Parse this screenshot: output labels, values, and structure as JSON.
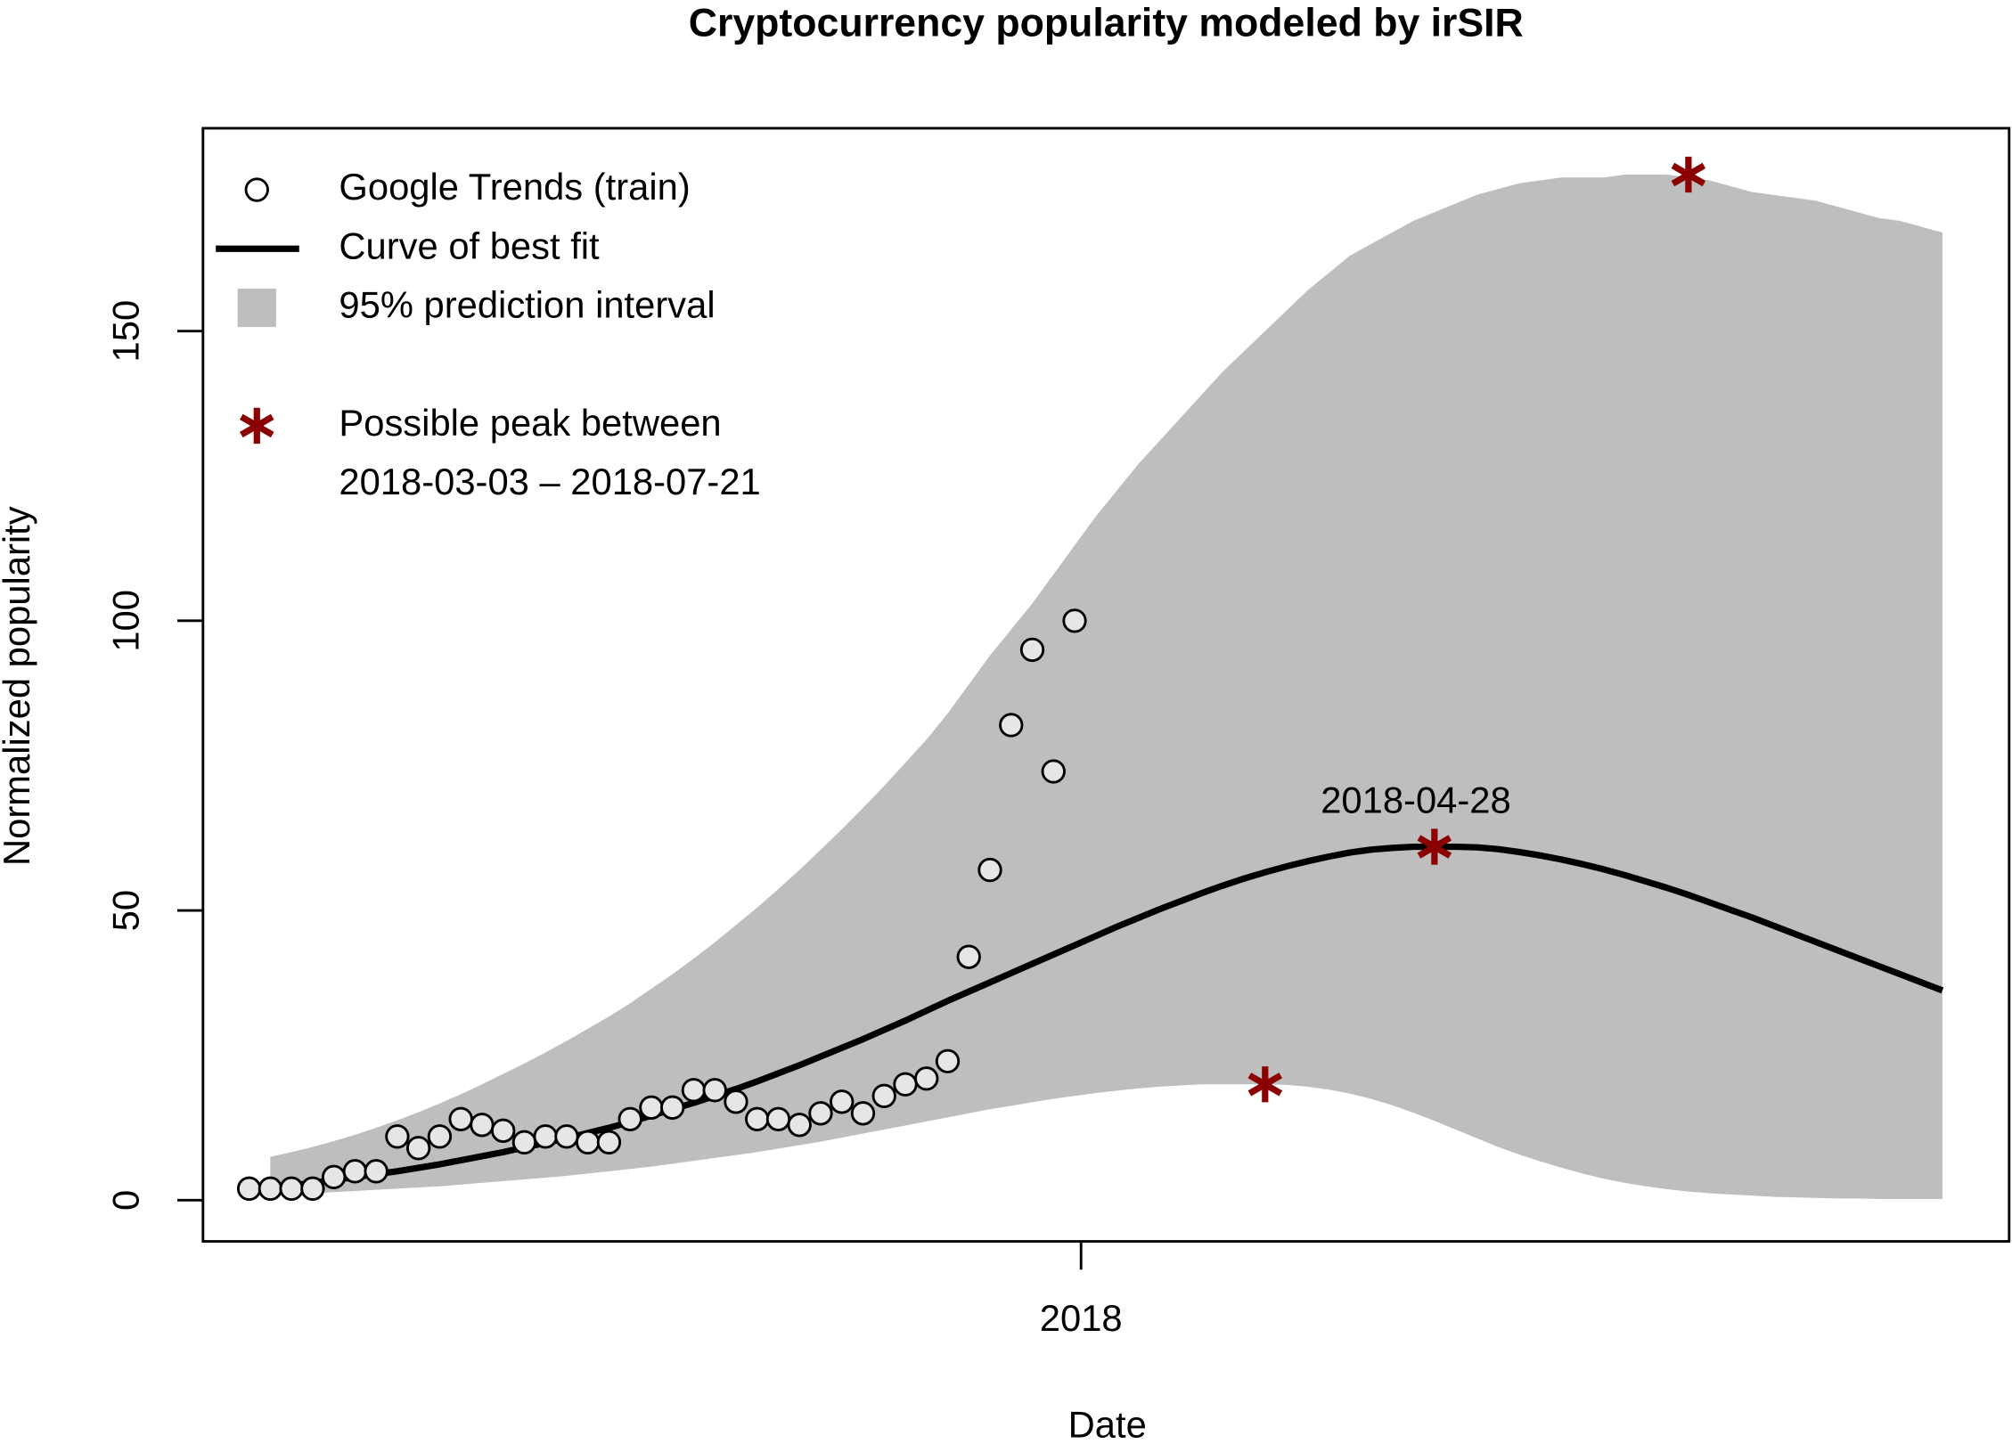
{
  "chart_data": {
    "type": "line",
    "title": "Cryptocurrency popularity modeled by irSIR",
    "x_label": "Date",
    "y_label": "Normalized popularity",
    "ylim": [
      -7.1,
      185
    ],
    "yticks": [
      0,
      50,
      100,
      150
    ],
    "categories": [
      null,
      null,
      null,
      null,
      null,
      null,
      null,
      null,
      null,
      null,
      null,
      null,
      null,
      null,
      null,
      null,
      null,
      null,
      null,
      null,
      null,
      null,
      null,
      null,
      null,
      null,
      null,
      null,
      null,
      null,
      null,
      null,
      null,
      null,
      null,
      null,
      null,
      null,
      null,
      "2018",
      null,
      null,
      null,
      null,
      null,
      null,
      null,
      null,
      null,
      null,
      null,
      null,
      null,
      null,
      null,
      null,
      null,
      null,
      null,
      null,
      null,
      null,
      null,
      null,
      null,
      null,
      null,
      null,
      null,
      null,
      null,
      null,
      null,
      null,
      null,
      null,
      null,
      null,
      null,
      null,
      null
    ],
    "annotation": "2018-04-28",
    "series": [
      {
        "name": "Google Trends (train)",
        "type": "scatter",
        "color": "#e6e6e6",
        "values": [
          2,
          2,
          2,
          2,
          4,
          5,
          5,
          11,
          9,
          11,
          14,
          13,
          12,
          10,
          11,
          11,
          10,
          10,
          14,
          16,
          16,
          19,
          19,
          17,
          14,
          14,
          13,
          15,
          17,
          15,
          18,
          20,
          21,
          24,
          42,
          57,
          82,
          95,
          74,
          100,
          null,
          null,
          null,
          null,
          null,
          null,
          null,
          null,
          null,
          null,
          null,
          null,
          null,
          null,
          null,
          null,
          null,
          null,
          null,
          null,
          null,
          null,
          null,
          null,
          null,
          null,
          null,
          null,
          null,
          null,
          null,
          null,
          null,
          null,
          null,
          null,
          null,
          null,
          null,
          null,
          null
        ]
      },
      {
        "name": "Curve of best fit",
        "type": "line",
        "color": "#000000",
        "values": [
          null,
          2,
          2.5,
          3,
          3.5,
          4,
          4.5,
          5,
          5.6,
          6.2,
          6.9,
          7.6,
          8.3,
          9.1,
          9.9,
          10.7,
          11.6,
          12.5,
          13.5,
          14.6,
          15.7,
          16.8,
          18,
          19.2,
          20.5,
          21.9,
          23.3,
          24.8,
          26.3,
          27.8,
          29.4,
          31,
          32.7,
          34.4,
          36,
          37.6,
          39.2,
          40.8,
          42.4,
          44,
          45.6,
          47.2,
          48.7,
          50.2,
          51.6,
          53,
          54.3,
          55.5,
          56.6,
          57.6,
          58.5,
          59.3,
          60,
          60.5,
          60.8,
          61,
          61,
          61,
          60.9,
          60.6,
          60.1,
          59.5,
          58.8,
          58,
          57.1,
          56.1,
          55,
          53.9,
          52.7,
          51.4,
          50.1,
          48.8,
          47.4,
          46,
          44.6,
          43.2,
          41.8,
          40.4,
          39,
          37.6,
          36.2
        ]
      },
      {
        "name": "95% prediction interval",
        "type": "band",
        "color": "#bebebe",
        "upper": [
          null,
          7.5,
          8.3,
          9.2,
          10.2,
          11.3,
          12.5,
          13.8,
          15.2,
          16.7,
          18.3,
          20,
          21.8,
          23.6,
          25.5,
          27.5,
          29.6,
          31.7,
          34,
          36.5,
          39,
          41.7,
          44.5,
          47.5,
          50.5,
          53.7,
          57,
          60.5,
          64,
          67.7,
          71.5,
          75.5,
          79.5,
          84,
          89,
          94,
          98.5,
          103,
          108,
          113,
          118,
          122.5,
          127,
          131,
          135,
          139,
          143,
          146.5,
          150,
          153.5,
          157,
          160,
          163,
          165,
          167,
          169,
          170.5,
          172,
          173.5,
          174.5,
          175.5,
          176,
          176.5,
          176.5,
          176.5,
          177,
          177,
          177,
          176.5,
          176,
          175,
          174,
          173.5,
          173,
          172.5,
          171.5,
          170.5,
          169.5,
          169,
          168,
          167
        ],
        "lower": [
          null,
          1,
          1.1,
          1.2,
          1.4,
          1.6,
          1.8,
          2,
          2.2,
          2.4,
          2.7,
          3,
          3.3,
          3.6,
          3.9,
          4.2,
          4.6,
          5,
          5.4,
          5.8,
          6.3,
          6.8,
          7.3,
          7.8,
          8.3,
          8.9,
          9.5,
          10.1,
          10.8,
          11.5,
          12.2,
          12.9,
          13.6,
          14.3,
          15,
          15.7,
          16.3,
          16.9,
          17.5,
          18,
          18.5,
          18.9,
          19.3,
          19.6,
          19.8,
          20,
          20,
          20,
          20,
          19.9,
          19.6,
          19.1,
          18.4,
          17.5,
          16.4,
          15.1,
          13.7,
          12.2,
          10.7,
          9.2,
          7.9,
          6.7,
          5.6,
          4.6,
          3.7,
          3,
          2.4,
          1.9,
          1.5,
          1.2,
          1,
          0.8,
          0.6,
          0.5,
          0.4,
          0.3,
          0.3,
          0.2,
          0.2,
          0.2,
          0.2
        ]
      },
      {
        "name": "Possible peak between",
        "range_label": "2018-03-03 – 2018-07-21",
        "type": "star",
        "color": "#8b0000",
        "values": [
          null,
          null,
          null,
          null,
          null,
          null,
          null,
          null,
          null,
          null,
          null,
          null,
          null,
          null,
          null,
          null,
          null,
          null,
          null,
          null,
          null,
          null,
          null,
          null,
          null,
          null,
          null,
          null,
          null,
          null,
          null,
          null,
          null,
          null,
          null,
          null,
          null,
          null,
          null,
          null,
          null,
          null,
          null,
          null,
          null,
          null,
          null,
          null,
          20,
          null,
          null,
          null,
          null,
          null,
          null,
          null,
          61,
          null,
          null,
          null,
          null,
          null,
          null,
          null,
          null,
          null,
          null,
          null,
          177,
          null,
          null,
          null,
          null,
          null,
          null,
          null,
          null,
          null,
          null,
          null,
          null
        ]
      }
    ]
  }
}
